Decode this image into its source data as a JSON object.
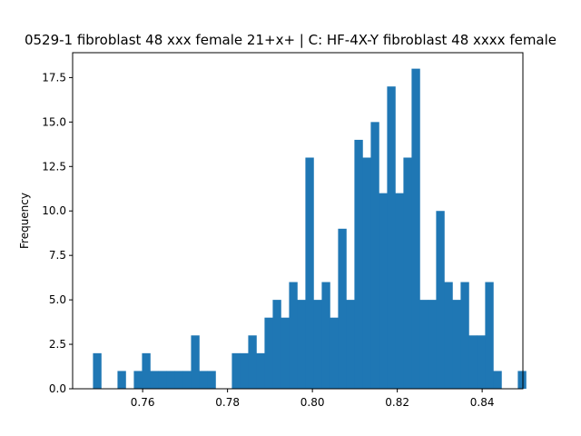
{
  "chart_data": {
    "type": "bar",
    "title": "0529-1 fibroblast 48 xxx female 21+x+ | C: HF-4X-Y fibroblast 48 xxxx female",
    "xlabel": "",
    "ylabel": "Frequency",
    "xlim": [
      0.7435,
      0.8496
    ],
    "ylim": [
      0,
      18.9
    ],
    "bar_color": "#1f77b4",
    "bin_start": 0.7483,
    "bin_width": 0.001925,
    "values": [
      2,
      0,
      0,
      1,
      0,
      1,
      2,
      1,
      1,
      1,
      1,
      1,
      3,
      1,
      1,
      0,
      0,
      2,
      2,
      3,
      2,
      4,
      5,
      4,
      6,
      5,
      13,
      5,
      6,
      4,
      9,
      5,
      14,
      13,
      15,
      11,
      17,
      11,
      13,
      18,
      5,
      5,
      10,
      6,
      5,
      6,
      3,
      3,
      6,
      1,
      0,
      0,
      1
    ],
    "x_ticks": [
      {
        "value": 0.76,
        "label": "0.76"
      },
      {
        "value": 0.78,
        "label": "0.78"
      },
      {
        "value": 0.8,
        "label": "0.80"
      },
      {
        "value": 0.82,
        "label": "0.82"
      },
      {
        "value": 0.84,
        "label": "0.84"
      }
    ],
    "y_ticks": [
      {
        "value": 0,
        "label": "0.0"
      },
      {
        "value": 2.5,
        "label": "2.5"
      },
      {
        "value": 5,
        "label": "5.0"
      },
      {
        "value": 7.5,
        "label": "7.5"
      },
      {
        "value": 10,
        "label": "10.0"
      },
      {
        "value": 12.5,
        "label": "12.5"
      },
      {
        "value": 15,
        "label": "15.0"
      },
      {
        "value": 17.5,
        "label": "17.5"
      }
    ],
    "grid": false,
    "legend": "none"
  }
}
